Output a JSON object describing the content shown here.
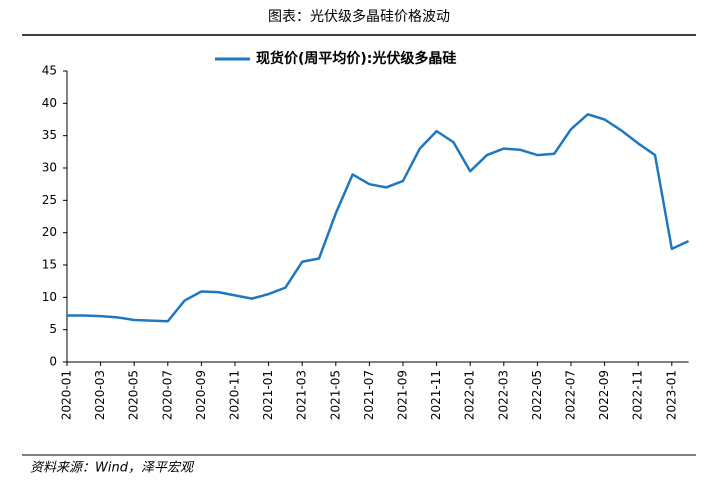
{
  "chart_data": {
    "type": "line",
    "title": "图表：光伏级多晶硅价格波动",
    "source": "资料来源：Wind，泽平宏观",
    "categories": [
      "2020-01",
      null,
      "2020-03",
      null,
      "2020-05",
      null,
      "2020-07",
      null,
      "2020-09",
      null,
      "2020-11",
      null,
      "2021-01",
      null,
      "2021-03",
      null,
      "2021-05",
      null,
      "2021-07",
      null,
      "2021-09",
      null,
      "2021-11",
      null,
      "2022-01",
      null,
      "2022-03",
      null,
      "2022-05",
      null,
      "2022-07",
      null,
      "2022-09",
      null,
      "2022-11",
      null,
      "2023-01",
      null
    ],
    "series": [
      {
        "name": "现货价(周平均价):光伏级多晶硅",
        "color": "#1f77c0",
        "values": [
          7.2,
          7.2,
          7.1,
          6.9,
          6.5,
          6.4,
          6.3,
          9.5,
          10.9,
          10.8,
          10.3,
          9.8,
          10.5,
          11.5,
          15.5,
          16,
          23,
          29,
          27.5,
          27,
          28,
          33,
          35.7,
          34,
          29.5,
          32,
          33,
          32.8,
          32,
          32.2,
          36,
          38.3,
          37.5,
          35.8,
          33.8,
          32,
          17.5,
          18.7
        ]
      }
    ],
    "ylim": [
      0,
      45
    ],
    "yticks": [
      0,
      5,
      10,
      15,
      20,
      25,
      30,
      35,
      40,
      45
    ]
  }
}
